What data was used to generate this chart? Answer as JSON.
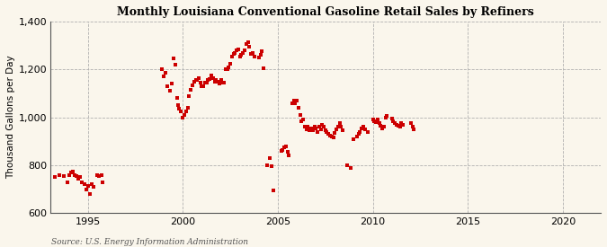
{
  "title": "Monthly Louisiana Conventional Gasoline Retail Sales by Refiners",
  "ylabel": "Thousand Gallons per Day",
  "source": "Source: U.S. Energy Information Administration",
  "background_color": "#faf6ec",
  "plot_bg_color": "#faf6ec",
  "dot_color": "#cc0000",
  "xlim": [
    1993.0,
    2022.0
  ],
  "ylim": [
    600,
    1400
  ],
  "xticks": [
    1995,
    2000,
    2005,
    2010,
    2015,
    2020
  ],
  "yticks": [
    600,
    800,
    1000,
    1200,
    1400
  ],
  "x": [
    1993.25,
    1993.5,
    1993.75,
    1993.9,
    1994.0,
    1994.1,
    1994.2,
    1994.3,
    1994.4,
    1994.5,
    1994.6,
    1994.7,
    1994.8,
    1994.9,
    1995.0,
    1995.1,
    1995.2,
    1995.3,
    1995.5,
    1995.6,
    1995.7,
    1995.75,
    1998.9,
    1999.0,
    1999.1,
    1999.2,
    1999.3,
    1999.4,
    1999.5,
    1999.6,
    1999.7,
    1999.75,
    1999.8,
    1999.9,
    2000.0,
    2000.08,
    2000.17,
    2000.25,
    2000.33,
    2000.42,
    2000.5,
    2000.58,
    2000.67,
    2000.75,
    2000.83,
    2000.92,
    2001.0,
    2001.08,
    2001.17,
    2001.25,
    2001.33,
    2001.42,
    2001.5,
    2001.58,
    2001.67,
    2001.75,
    2001.83,
    2001.92,
    2002.0,
    2002.08,
    2002.17,
    2002.25,
    2002.33,
    2002.42,
    2002.5,
    2002.58,
    2002.67,
    2002.75,
    2002.83,
    2002.92,
    2003.0,
    2003.08,
    2003.17,
    2003.25,
    2003.33,
    2003.42,
    2003.5,
    2003.58,
    2003.67,
    2003.75,
    2004.0,
    2004.08,
    2004.17,
    2004.25,
    2004.42,
    2004.58,
    2004.67,
    2004.75,
    2005.17,
    2005.25,
    2005.33,
    2005.42,
    2005.5,
    2005.58,
    2005.75,
    2005.83,
    2005.92,
    2006.0,
    2006.08,
    2006.17,
    2006.25,
    2006.33,
    2006.42,
    2006.5,
    2006.58,
    2006.67,
    2006.75,
    2006.83,
    2006.92,
    2007.0,
    2007.08,
    2007.17,
    2007.25,
    2007.33,
    2007.42,
    2007.5,
    2007.58,
    2007.67,
    2007.75,
    2007.83,
    2007.92,
    2008.0,
    2008.08,
    2008.17,
    2008.25,
    2008.33,
    2008.42,
    2008.67,
    2008.83,
    2009.0,
    2009.17,
    2009.25,
    2009.33,
    2009.42,
    2009.5,
    2009.58,
    2009.75,
    2010.0,
    2010.08,
    2010.17,
    2010.25,
    2010.33,
    2010.42,
    2010.5,
    2010.58,
    2010.67,
    2010.75,
    2011.0,
    2011.08,
    2011.17,
    2011.25,
    2011.33,
    2011.42,
    2011.5,
    2011.58,
    2012.0,
    2012.08,
    2012.17
  ],
  "y": [
    750,
    760,
    755,
    730,
    760,
    770,
    775,
    760,
    755,
    745,
    750,
    730,
    720,
    700,
    715,
    680,
    720,
    710,
    760,
    755,
    760,
    730,
    1200,
    1170,
    1185,
    1130,
    1110,
    1140,
    1245,
    1220,
    1080,
    1050,
    1035,
    1025,
    1000,
    1010,
    1025,
    1040,
    1090,
    1115,
    1135,
    1150,
    1155,
    1155,
    1165,
    1145,
    1130,
    1130,
    1145,
    1145,
    1155,
    1160,
    1175,
    1165,
    1150,
    1155,
    1150,
    1140,
    1155,
    1145,
    1145,
    1200,
    1200,
    1210,
    1225,
    1255,
    1265,
    1270,
    1280,
    1285,
    1255,
    1260,
    1270,
    1280,
    1305,
    1315,
    1295,
    1265,
    1270,
    1255,
    1250,
    1260,
    1275,
    1205,
    800,
    830,
    795,
    695,
    860,
    865,
    875,
    880,
    855,
    840,
    1060,
    1070,
    1060,
    1070,
    1040,
    1010,
    985,
    990,
    960,
    950,
    960,
    945,
    955,
    945,
    960,
    955,
    940,
    960,
    950,
    970,
    960,
    945,
    940,
    930,
    925,
    920,
    915,
    935,
    950,
    960,
    975,
    960,
    945,
    800,
    790,
    910,
    920,
    930,
    940,
    955,
    960,
    950,
    940,
    990,
    985,
    980,
    990,
    975,
    965,
    955,
    960,
    1000,
    1005,
    995,
    985,
    975,
    970,
    965,
    960,
    975,
    970,
    975,
    960,
    950
  ]
}
